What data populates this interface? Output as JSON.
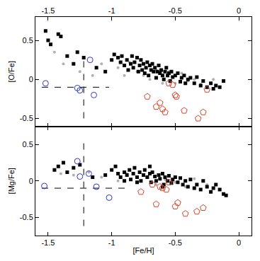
{
  "chart_data": [
    {
      "type": "scatter",
      "y_label": "[O/Fe]",
      "xlim": [
        -1.6,
        0.1
      ],
      "xticks": [
        -1.5,
        -1,
        -0.5,
        0
      ],
      "ylim": [
        -0.6,
        0.8
      ],
      "yticks": [
        -0.5,
        0,
        0.5
      ],
      "tick_labels": true,
      "series": [
        {
          "type": "line",
          "line_style": "dashed",
          "color": "#000000",
          "x": [
            -1.55,
            -1.02,
            null,
            -1.22,
            -1.22
          ],
          "y": [
            -0.1,
            -0.1,
            null,
            -0.5,
            0.3
          ]
        },
        {
          "type": "scatter",
          "marker": "circle",
          "color": "#b0b0b0",
          "x": [
            -1.45,
            -1.38,
            -1.25,
            -1.15,
            -1.08,
            -0.95,
            -0.9,
            -0.86,
            -0.8,
            -0.75,
            -0.7,
            -0.65,
            -0.6,
            -0.55,
            -0.5,
            -0.45,
            -0.4,
            -0.35,
            -0.3,
            -0.2
          ],
          "y": [
            0.35,
            0.2,
            0.1,
            0.05,
            0.2,
            0.15,
            0.05,
            0.22,
            0.1,
            0.05,
            0.0,
            0.12,
            -0.05,
            0.1,
            -0.05,
            0.08,
            -0.02,
            0.0,
            -0.06,
            0.0
          ]
        },
        {
          "type": "scatter",
          "marker": "square",
          "color": "#000000",
          "x": [
            -1.52,
            -1.5,
            -1.48,
            -1.42,
            -1.4,
            -1.35,
            -1.3,
            -1.27,
            -1.22,
            -1.12,
            -1.05,
            -1.0,
            -0.98,
            -0.95,
            -0.93,
            -0.92,
            -0.9,
            -0.88,
            -0.87,
            -0.85,
            -0.84,
            -0.83,
            -0.82,
            -0.8,
            -0.79,
            -0.78,
            -0.77,
            -0.76,
            -0.75,
            -0.74,
            -0.73,
            -0.72,
            -0.71,
            -0.7,
            -0.69,
            -0.68,
            -0.67,
            -0.66,
            -0.65,
            -0.64,
            -0.63,
            -0.62,
            -0.61,
            -0.6,
            -0.59,
            -0.58,
            -0.57,
            -0.56,
            -0.55,
            -0.54,
            -0.53,
            -0.52,
            -0.5,
            -0.48,
            -0.46,
            -0.45,
            -0.43,
            -0.42,
            -0.4,
            -0.38,
            -0.35,
            -0.33,
            -0.3,
            -0.28,
            -0.25,
            -0.22,
            -0.2,
            -0.18,
            -0.15,
            -0.12
          ],
          "y": [
            0.62,
            0.5,
            0.45,
            0.58,
            0.55,
            0.3,
            0.2,
            0.35,
            0.28,
            0.15,
            0.1,
            0.25,
            0.32,
            0.28,
            0.22,
            0.3,
            0.18,
            0.25,
            0.12,
            0.2,
            0.3,
            0.15,
            0.22,
            0.28,
            0.1,
            0.18,
            0.25,
            0.12,
            0.2,
            0.08,
            0.15,
            0.22,
            0.05,
            0.18,
            0.12,
            0.2,
            0.1,
            0.15,
            0.02,
            0.1,
            0.18,
            0.08,
            0.12,
            0.05,
            0.0,
            0.1,
            0.15,
            0.05,
            0.08,
            -0.02,
            0.1,
            0.03,
            0.05,
            0.08,
            -0.03,
            0.02,
            0.05,
            -0.05,
            0.0,
            0.02,
            -0.05,
            0.03,
            -0.08,
            -0.02,
            -0.1,
            -0.05,
            -0.12,
            -0.08,
            -0.1,
            -0.02
          ]
        },
        {
          "type": "scatter",
          "marker": "circle-open",
          "color": "#3333cc",
          "x": [
            -1.52,
            -1.27,
            -1.25,
            -1.17,
            -1.14
          ],
          "y": [
            -0.05,
            -0.11,
            -0.14,
            0.25,
            -0.2
          ]
        },
        {
          "type": "scatter",
          "marker": "pentagon-open",
          "color": "#d9442a",
          "x": [
            -0.72,
            -0.65,
            -0.62,
            -0.6,
            -0.58,
            -0.55,
            -0.52,
            -0.5,
            -0.49,
            -0.43,
            -0.32,
            -0.28,
            -0.25
          ],
          "y": [
            -0.22,
            -0.35,
            -0.3,
            -0.38,
            -0.42,
            -0.05,
            -0.07,
            -0.2,
            -0.22,
            -0.4,
            -0.5,
            -0.42,
            -0.13
          ]
        }
      ]
    },
    {
      "type": "scatter",
      "x_label": "[Fe/H]",
      "y_label": "[Mg/Fe]",
      "xlim": [
        -1.6,
        0.1
      ],
      "xticks": [
        -1.5,
        -1,
        -0.5,
        0
      ],
      "ylim": [
        -0.75,
        0.75
      ],
      "yticks": [
        -0.5,
        0,
        0.5
      ],
      "tick_labels": true,
      "series": [
        {
          "type": "line",
          "line_style": "dashed",
          "color": "#000000",
          "x": [
            -1.55,
            -0.85,
            null,
            -1.22,
            -1.22
          ],
          "y": [
            -0.1,
            -0.1,
            null,
            -0.62,
            0.53
          ]
        },
        {
          "type": "scatter",
          "marker": "circle",
          "color": "#b0b0b0",
          "x": [
            -1.4,
            -1.3,
            -1.18,
            -1.08,
            -0.95,
            -0.88,
            -0.8,
            -0.72,
            -0.65,
            -0.58,
            -0.5,
            -0.42,
            -0.35,
            -0.25,
            -0.15
          ],
          "y": [
            0.1,
            0.08,
            0.12,
            0.05,
            0.0,
            0.1,
            -0.02,
            0.06,
            -0.05,
            0.02,
            -0.02,
            -0.08,
            0.03,
            -0.05,
            -0.12
          ]
        },
        {
          "type": "scatter",
          "marker": "square",
          "color": "#000000",
          "x": [
            -1.45,
            -1.42,
            -1.38,
            -1.35,
            -1.3,
            -1.25,
            -1.15,
            -1.05,
            -1.0,
            -0.97,
            -0.95,
            -0.93,
            -0.9,
            -0.88,
            -0.86,
            -0.85,
            -0.83,
            -0.82,
            -0.8,
            -0.78,
            -0.77,
            -0.75,
            -0.74,
            -0.72,
            -0.7,
            -0.69,
            -0.68,
            -0.66,
            -0.65,
            -0.63,
            -0.62,
            -0.6,
            -0.59,
            -0.58,
            -0.56,
            -0.55,
            -0.53,
            -0.52,
            -0.5,
            -0.48,
            -0.46,
            -0.44,
            -0.42,
            -0.4,
            -0.38,
            -0.35,
            -0.33,
            -0.3,
            -0.28,
            -0.25,
            -0.22,
            -0.2,
            -0.18,
            -0.15,
            -0.12,
            -0.1,
            -0.9,
            -0.8,
            -0.7,
            -0.6
          ],
          "y": [
            0.15,
            0.2,
            0.25,
            0.12,
            0.18,
            0.22,
            0.05,
            0.08,
            0.15,
            0.2,
            0.1,
            0.05,
            0.12,
            0.08,
            0.15,
            0.02,
            0.1,
            0.18,
            0.05,
            0.12,
            0.0,
            0.08,
            0.15,
            0.05,
            0.1,
            -0.02,
            0.12,
            0.06,
            0.0,
            0.08,
            0.03,
            0.1,
            -0.05,
            0.05,
            0.0,
            0.07,
            -0.03,
            0.02,
            0.05,
            -0.02,
            0.04,
            -0.05,
            0.0,
            -0.08,
            0.02,
            -0.1,
            -0.05,
            -0.12,
            0.0,
            -0.08,
            -0.15,
            -0.1,
            -0.05,
            -0.12,
            -0.18,
            -0.2,
            0.0,
            -0.02,
            0.2,
            -0.08
          ]
        },
        {
          "type": "scatter",
          "marker": "circle-open",
          "color": "#3333cc",
          "x": [
            -1.53,
            -1.27,
            -1.25,
            -1.18,
            -1.12,
            -1.02
          ],
          "y": [
            -0.07,
            0.27,
            0.06,
            0.1,
            -0.08,
            -0.23
          ]
        },
        {
          "type": "scatter",
          "marker": "pentagon-open",
          "color": "#d9442a",
          "x": [
            -0.77,
            -0.68,
            -0.62,
            -0.6,
            -0.57,
            -0.55,
            -0.5,
            -0.65,
            -0.48,
            -0.42,
            -0.33,
            -0.28
          ],
          "y": [
            -0.15,
            -0.05,
            -0.08,
            -0.1,
            -0.12,
            -0.02,
            -0.35,
            -0.32,
            -0.3,
            -0.45,
            -0.42,
            -0.37
          ]
        }
      ]
    }
  ]
}
